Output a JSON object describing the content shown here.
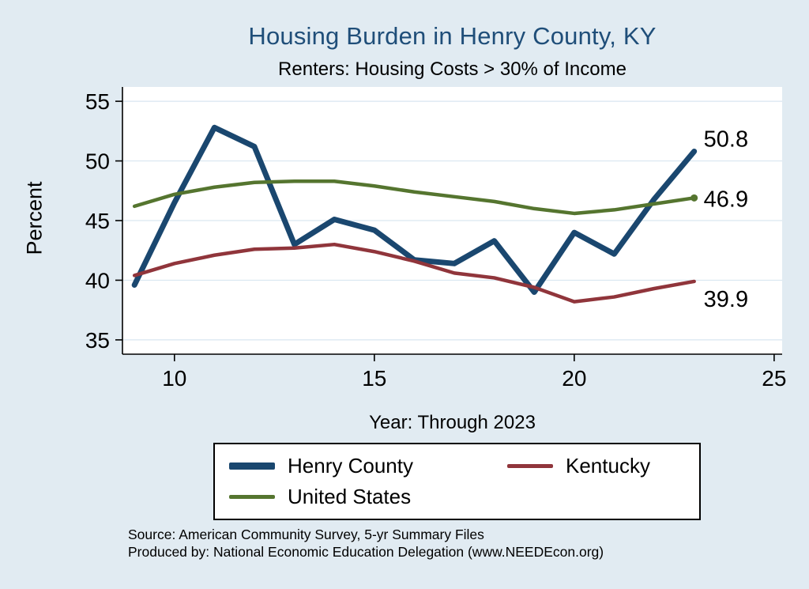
{
  "title": "Housing Burden in Henry County, KY",
  "subtitle": "Renters: Housing Costs > 30% of Income",
  "axes": {
    "ylabel": "Percent",
    "xlabel": "Year: Through 2023"
  },
  "legend": {
    "items": [
      {
        "label": "Henry County",
        "color_key": "henry_county"
      },
      {
        "label": "Kentucky",
        "color_key": "kentucky"
      },
      {
        "label": "United States",
        "color_key": "united_states"
      }
    ]
  },
  "notes": {
    "source": "Source: American Community Survey, 5-yr Summary Files",
    "produced_by": "Produced by: National Economic Education Delegation (www.NEEDEcon.org)"
  },
  "colors": {
    "background": "#e1ebf2",
    "plot_background": "#ffffff",
    "title": "#1f4e79",
    "grid": "#d9e6f0",
    "axis": "#000000",
    "henry_county": "#1a476f",
    "kentucky": "#90353b",
    "united_states": "#55752f"
  },
  "chart_data": {
    "type": "line",
    "title": "Housing Burden in Henry County, KY",
    "subtitle": "Renters: Housing Costs > 30% of Income",
    "xlabel": "Year: Through 2023",
    "ylabel": "Percent",
    "x": [
      9,
      10,
      11,
      12,
      13,
      14,
      15,
      16,
      17,
      18,
      19,
      20,
      21,
      22,
      23
    ],
    "series": [
      {
        "name": "Henry County",
        "color_key": "henry_county",
        "width": 7,
        "end_label": "50.8",
        "values": [
          39.6,
          46.5,
          52.8,
          51.2,
          43.0,
          45.1,
          44.2,
          41.7,
          41.4,
          43.3,
          39.0,
          44.0,
          42.2,
          46.8,
          50.8
        ]
      },
      {
        "name": "Kentucky",
        "color_key": "kentucky",
        "width": 4.5,
        "end_label": "39.9",
        "values": [
          40.4,
          41.4,
          42.1,
          42.6,
          42.7,
          43.0,
          42.4,
          41.6,
          40.6,
          40.2,
          39.4,
          38.2,
          38.6,
          39.3,
          39.9
        ]
      },
      {
        "name": "United States",
        "color_key": "united_states",
        "width": 4.5,
        "end_label": "46.9",
        "end_marker": true,
        "values": [
          46.2,
          47.2,
          47.8,
          48.2,
          48.3,
          48.3,
          47.9,
          47.4,
          47.0,
          46.6,
          46.0,
          45.6,
          45.9,
          46.4,
          46.9
        ]
      }
    ],
    "yticks": [
      35,
      40,
      45,
      50,
      55
    ],
    "xticks": [
      10,
      15,
      20,
      25
    ],
    "ylim": [
      33.8,
      56.2
    ],
    "xlim": [
      8.7,
      25.2
    ],
    "grid": true,
    "legend_position": "bottom"
  }
}
